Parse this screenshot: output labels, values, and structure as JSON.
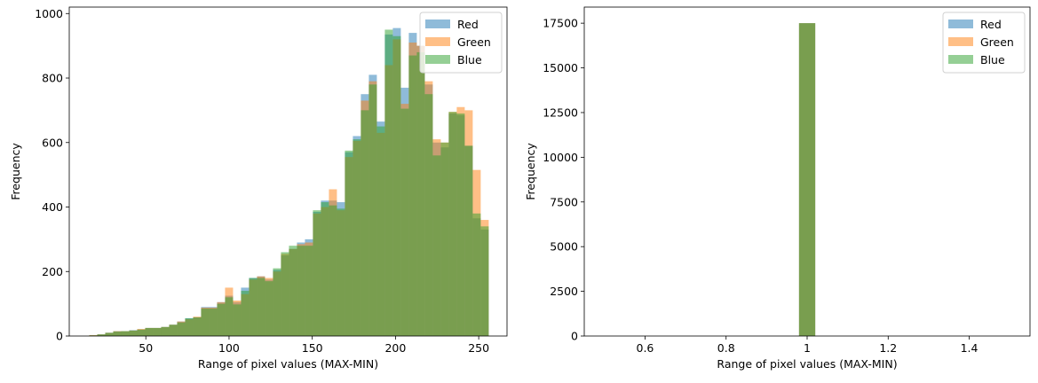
{
  "chart_data": [
    {
      "type": "bar",
      "histogram": true,
      "xlabel": "Range of pixel values (MAX-MIN)",
      "ylabel": "Frequency",
      "xlim": [
        4,
        267
      ],
      "ylim": [
        0,
        1020
      ],
      "xticks": [
        50,
        100,
        150,
        200,
        250
      ],
      "yticks": [
        0,
        200,
        400,
        600,
        800,
        1000
      ],
      "legend_position": "top-right",
      "bin_edges": [
        16,
        20.8,
        25.6,
        30.4,
        35.2,
        40,
        44.8,
        49.6,
        54.4,
        59.2,
        64,
        68.8,
        73.6,
        78.4,
        83.2,
        88,
        92.8,
        97.6,
        102.4,
        107.2,
        112,
        116.8,
        121.6,
        126.4,
        131.2,
        136,
        140.8,
        145.6,
        150.4,
        155.2,
        160,
        164.8,
        169.6,
        174.4,
        179.2,
        184,
        188.8,
        193.6,
        198.4,
        203.2,
        208,
        212.8,
        217.6,
        222.4,
        227.2,
        232,
        236.8,
        241.6,
        246.4,
        251.2,
        256
      ],
      "series": [
        {
          "name": "Red",
          "color": "#1f77b4",
          "values": [
            2,
            5,
            10,
            15,
            15,
            18,
            20,
            25,
            25,
            28,
            35,
            45,
            55,
            58,
            90,
            90,
            105,
            125,
            105,
            150,
            180,
            185,
            175,
            205,
            250,
            270,
            290,
            300,
            385,
            420,
            420,
            415,
            570,
            620,
            750,
            810,
            665,
            935,
            955,
            770,
            940,
            900,
            780,
            600,
            585,
            690,
            685,
            590,
            365,
            330
          ]
        },
        {
          "name": "Green",
          "color": "#ff7f0e",
          "values": [
            3,
            5,
            10,
            15,
            15,
            17,
            22,
            25,
            25,
            28,
            35,
            45,
            52,
            60,
            88,
            88,
            105,
            150,
            110,
            130,
            175,
            185,
            180,
            200,
            255,
            270,
            285,
            290,
            380,
            400,
            455,
            390,
            555,
            605,
            730,
            790,
            630,
            840,
            920,
            720,
            910,
            900,
            790,
            610,
            600,
            695,
            710,
            700,
            515,
            360
          ]
        },
        {
          "name": "Blue",
          "color": "#2ca02c",
          "values": [
            2,
            5,
            10,
            14,
            15,
            17,
            20,
            25,
            25,
            28,
            35,
            42,
            55,
            58,
            85,
            85,
            100,
            120,
            98,
            140,
            180,
            180,
            170,
            210,
            260,
            280,
            280,
            280,
            390,
            415,
            405,
            395,
            575,
            610,
            700,
            780,
            650,
            950,
            930,
            705,
            870,
            880,
            750,
            560,
            600,
            695,
            690,
            590,
            380,
            340
          ]
        }
      ]
    },
    {
      "type": "bar",
      "histogram": true,
      "xlabel": "Range of pixel values (MAX-MIN)",
      "ylabel": "Frequency",
      "xlim": [
        0.45,
        1.55
      ],
      "ylim": [
        0,
        18400
      ],
      "xticks": [
        0.6,
        0.8,
        1.0,
        1.2,
        1.4
      ],
      "yticks": [
        0,
        2500,
        5000,
        7500,
        10000,
        12500,
        15000,
        17500
      ],
      "legend_position": "top-right",
      "bin_edges": [
        0.98,
        1.02
      ],
      "series": [
        {
          "name": "Red",
          "color": "#1f77b4",
          "values": [
            17500
          ]
        },
        {
          "name": "Green",
          "color": "#ff7f0e",
          "values": [
            17500
          ]
        },
        {
          "name": "Blue",
          "color": "#2ca02c",
          "values": [
            17500
          ]
        }
      ]
    }
  ]
}
